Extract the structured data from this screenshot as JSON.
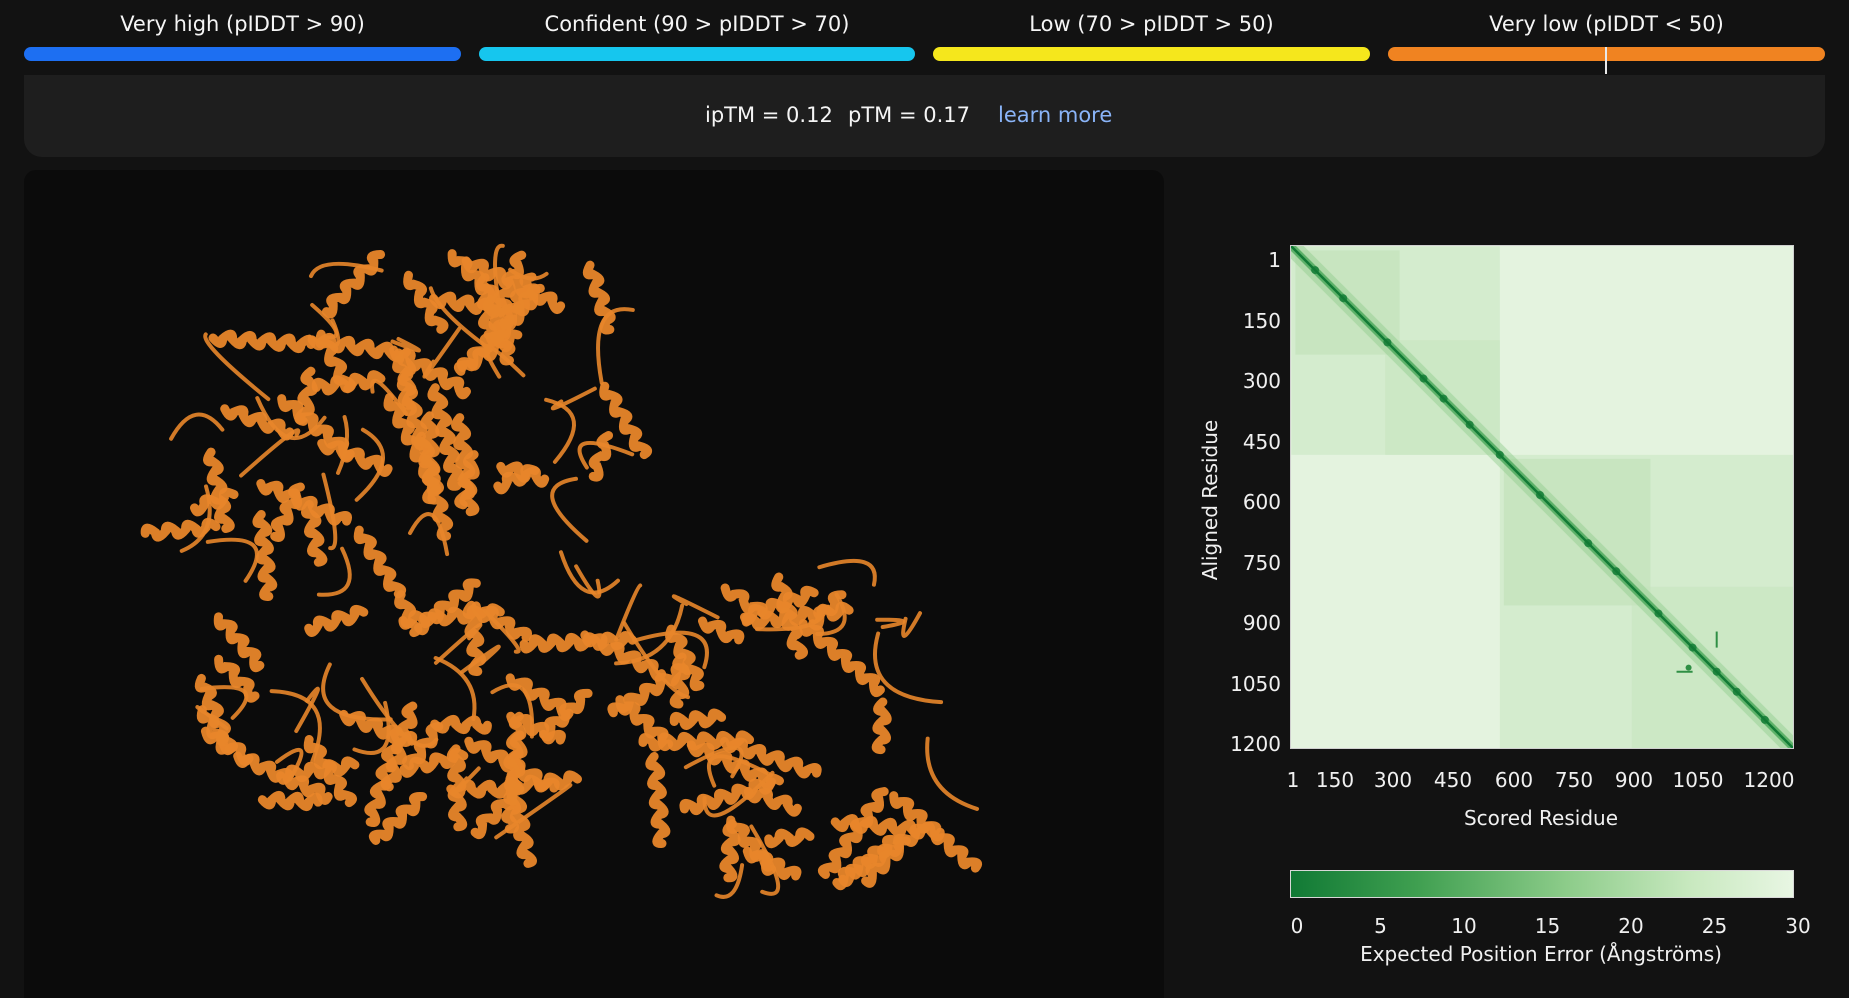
{
  "legend": [
    {
      "label": "Very high (pIDDT > 90)",
      "color": "#1d6ff2"
    },
    {
      "label": "Confident (90 > pIDDT > 70)",
      "color": "#16c6ee"
    },
    {
      "label": "Low (70 > pIDDT > 50)",
      "color": "#f5e71c"
    },
    {
      "label": "Very low (pIDDT < 50)",
      "color": "#f08321"
    }
  ],
  "scores": {
    "iptm": "ipTM = 0.12",
    "ptm": "pTM = 0.17",
    "learn_more": "learn more"
  },
  "viewer": {
    "structure_color": "#e8862a"
  },
  "pae": {
    "ylabel": "Aligned Residue",
    "xlabel": "Scored Residue",
    "yticks": [
      "1",
      "150",
      "300",
      "450",
      "600",
      "750",
      "900",
      "1050",
      "1200"
    ],
    "xticks": [
      "1",
      "150",
      "300",
      "450",
      "600",
      "750",
      "900",
      "1050",
      "1200"
    ],
    "colorbar_ticks": [
      "0",
      "5",
      "10",
      "15",
      "20",
      "25",
      "30"
    ],
    "colorbar_label": "Expected Position Error (Ångströms)",
    "low_color": "#117a35",
    "high_color": "#e8f6e3"
  },
  "chart_data": {
    "type": "heatmap",
    "xlabel": "Scored Residue",
    "ylabel": "Aligned Residue",
    "x_range": [
      1,
      1250
    ],
    "y_range": [
      1,
      1250
    ],
    "colorbar_range": [
      0,
      30
    ],
    "colorbar_label": "Expected Position Error (Ångströms)",
    "domains": [
      {
        "start": 1,
        "end": 520
      },
      {
        "start": 520,
        "end": 1250
      }
    ]
  }
}
